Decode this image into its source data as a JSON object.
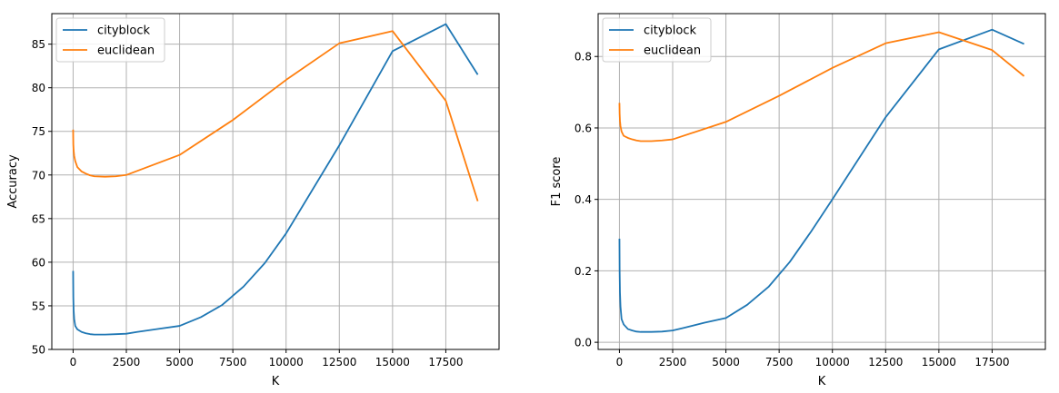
{
  "chart_data": [
    {
      "type": "line",
      "xlabel": "K",
      "ylabel": "Accuracy",
      "xlim": [
        -1000,
        20000
      ],
      "ylim": [
        50,
        88.5
      ],
      "xticks": [
        0,
        2500,
        5000,
        7500,
        10000,
        12500,
        15000,
        17500
      ],
      "xtick_labels": [
        "0",
        "2500",
        "5000",
        "7500",
        "10000",
        "12500",
        "15000",
        "17500"
      ],
      "yticks": [
        50,
        55,
        60,
        65,
        70,
        75,
        80,
        85
      ],
      "ytick_labels": [
        "50",
        "55",
        "60",
        "65",
        "70",
        "75",
        "80",
        "85"
      ],
      "grid": true,
      "legend_position": "top-left",
      "series": [
        {
          "name": "cityblock",
          "color": "#1f77b4",
          "x": [
            1,
            5,
            10,
            25,
            50,
            100,
            200,
            400,
            600,
            800,
            1000,
            1500,
            2000,
            2500,
            3000,
            4000,
            5000,
            6000,
            7000,
            8000,
            9000,
            10000,
            12500,
            15000,
            17500,
            19000
          ],
          "y": [
            59.0,
            57.5,
            56.0,
            54.5,
            53.5,
            52.7,
            52.3,
            52.0,
            51.85,
            51.75,
            51.7,
            51.7,
            51.75,
            51.8,
            52.0,
            52.35,
            52.7,
            53.7,
            55.1,
            57.2,
            59.9,
            63.3,
            73.4,
            84.2,
            87.3,
            81.5
          ]
        },
        {
          "name": "euclidean",
          "color": "#ff7f0e",
          "x": [
            1,
            5,
            10,
            25,
            50,
            100,
            200,
            400,
            600,
            800,
            1000,
            1500,
            2000,
            2500,
            5000,
            7500,
            10000,
            12500,
            15000,
            17500,
            19000
          ],
          "y": [
            75.2,
            74.3,
            73.5,
            72.8,
            72.2,
            71.6,
            70.9,
            70.4,
            70.15,
            69.95,
            69.85,
            69.8,
            69.85,
            70.0,
            72.3,
            76.3,
            80.9,
            85.1,
            86.5,
            78.5,
            67.0
          ]
        }
      ]
    },
    {
      "type": "line",
      "xlabel": "K",
      "ylabel": "F1 score",
      "xlim": [
        -1000,
        20000
      ],
      "ylim": [
        -0.02,
        0.92
      ],
      "xticks": [
        0,
        2500,
        5000,
        7500,
        10000,
        12500,
        15000,
        17500
      ],
      "xtick_labels": [
        "0",
        "2500",
        "5000",
        "7500",
        "10000",
        "12500",
        "15000",
        "17500"
      ],
      "yticks": [
        0.0,
        0.2,
        0.4,
        0.6,
        0.8
      ],
      "ytick_labels": [
        "0.0",
        "0.2",
        "0.4",
        "0.6",
        "0.8"
      ],
      "grid": true,
      "legend_position": "top-left",
      "series": [
        {
          "name": "cityblock",
          "color": "#1f77b4",
          "x": [
            1,
            10,
            25,
            50,
            100,
            200,
            400,
            600,
            800,
            1000,
            1500,
            2000,
            2500,
            3000,
            4000,
            5000,
            6000,
            7000,
            8000,
            9000,
            10000,
            12500,
            15000,
            17500,
            19000
          ],
          "y": [
            0.29,
            0.2,
            0.14,
            0.1,
            0.065,
            0.05,
            0.037,
            0.033,
            0.03,
            0.029,
            0.029,
            0.03,
            0.033,
            0.04,
            0.055,
            0.068,
            0.105,
            0.155,
            0.225,
            0.31,
            0.4,
            0.63,
            0.82,
            0.875,
            0.835
          ]
        },
        {
          "name": "euclidean",
          "color": "#ff7f0e",
          "x": [
            1,
            10,
            25,
            50,
            100,
            200,
            400,
            600,
            800,
            1000,
            1500,
            2000,
            2500,
            5000,
            7500,
            10000,
            12500,
            15000,
            17500,
            19000
          ],
          "y": [
            0.67,
            0.64,
            0.62,
            0.605,
            0.59,
            0.578,
            0.572,
            0.568,
            0.565,
            0.563,
            0.563,
            0.565,
            0.568,
            0.617,
            0.69,
            0.768,
            0.837,
            0.868,
            0.818,
            0.745
          ]
        }
      ]
    }
  ]
}
